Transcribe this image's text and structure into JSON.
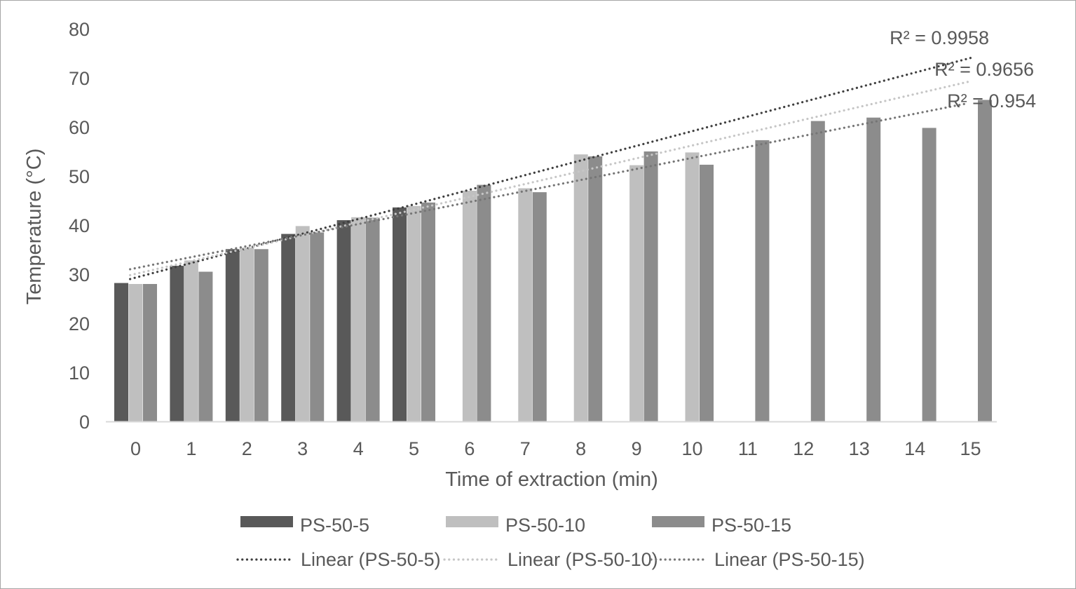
{
  "figure": {
    "background": "#ffffff",
    "border_color": "#a6a6a6",
    "text_color": "#595959",
    "axis_line_color": "#d9d9d9"
  },
  "chart_data": {
    "type": "bar",
    "title": "",
    "xlabel": "Time of extraction (min)",
    "ylabel": "Temperature (°C)",
    "ylim": [
      0,
      80
    ],
    "y_ticks": [
      0,
      10,
      20,
      30,
      40,
      50,
      60,
      70,
      80
    ],
    "categories": [
      0,
      1,
      2,
      3,
      4,
      5,
      6,
      7,
      8,
      9,
      10,
      11,
      12,
      13,
      14,
      15
    ],
    "grid": false,
    "legend_position": "bottom",
    "series": [
      {
        "name": "PS-50-5",
        "color": "#595959",
        "values": [
          28.2,
          31.7,
          35.1,
          38.2,
          41.0,
          43.6,
          null,
          null,
          null,
          null,
          null,
          null,
          null,
          null,
          null,
          null
        ]
      },
      {
        "name": "PS-50-10",
        "color": "#bfbfbf",
        "values": [
          28.0,
          32.8,
          35.4,
          39.8,
          41.6,
          43.9,
          47.0,
          47.5,
          54.4,
          52.2,
          54.8,
          null,
          null,
          null,
          null,
          null
        ]
      },
      {
        "name": "PS-50-15",
        "color": "#8c8c8c",
        "values": [
          28.0,
          30.5,
          35.1,
          38.5,
          41.5,
          44.6,
          48.2,
          46.7,
          54.0,
          55.0,
          52.3,
          57.3,
          61.2,
          61.9,
          59.8,
          65.5
        ]
      }
    ],
    "trendlines": [
      {
        "series": "PS-50-5",
        "label": "Linear (PS-50-5)",
        "r2_label": "R² = 0.9958",
        "color": "#3f3f3f",
        "t_start": -0.1,
        "v_start": 29.0,
        "t_end": 15.05,
        "v_end": 74.2
      },
      {
        "series": "PS-50-10",
        "label": "Linear (PS-50-10)",
        "r2_label": "R² = 0.9656",
        "color": "#c6c6c6",
        "t_start": -0.1,
        "v_start": 29.8,
        "t_end": 15.0,
        "v_end": 69.3
      },
      {
        "series": "PS-50-15",
        "label": "Linear (PS-50-15)",
        "r2_label": "R² = 0.954",
        "color": "#757575",
        "t_start": -0.1,
        "v_start": 31.0,
        "t_end": 14.9,
        "v_end": 64.7
      }
    ]
  }
}
